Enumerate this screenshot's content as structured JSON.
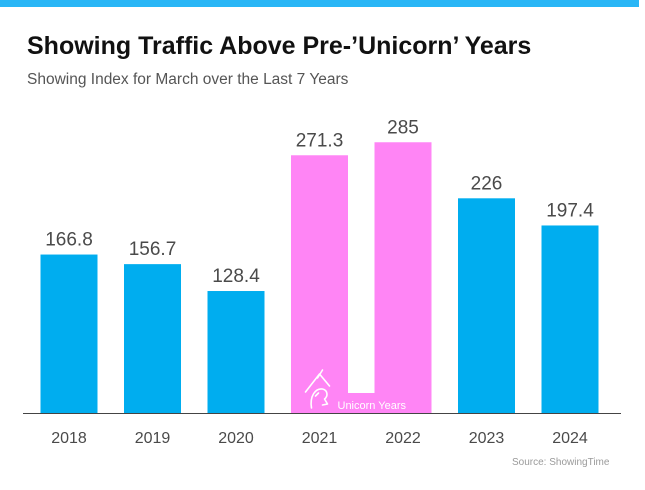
{
  "title": "Showing Traffic Above Pre-’Unicorn’ Years",
  "subtitle": "Showing Index for March over the Last 7 Years",
  "source": "Source: ShowingTime",
  "colors": {
    "standard_bar": "#00adef",
    "unicorn_bar": "#ff85f5",
    "top_rule": "#29b6f6",
    "unicorn_text": "#ffffff",
    "label_text": "#4a4a4a",
    "axis_line": "#444444"
  },
  "chart_data": {
    "type": "bar",
    "categories": [
      "2018",
      "2019",
      "2020",
      "2021",
      "2022",
      "2023",
      "2024"
    ],
    "values": [
      166.8,
      156.7,
      128.4,
      271.3,
      285,
      226,
      197.4
    ],
    "value_labels": [
      "166.8",
      "156.7",
      "128.4",
      "271.3",
      "285",
      "226",
      "197.4"
    ],
    "highlighted_categories": [
      "2021",
      "2022"
    ],
    "highlight_label": "Unicorn Years",
    "highlight_icon": "unicorn-icon",
    "title": "Showing Traffic Above Pre-’Unicorn’ Years",
    "subtitle": "Showing Index for March over the Last 7 Years",
    "xlabel": "",
    "ylabel": "",
    "ylim": [
      0,
      300
    ],
    "grid": false,
    "legend": "none"
  }
}
